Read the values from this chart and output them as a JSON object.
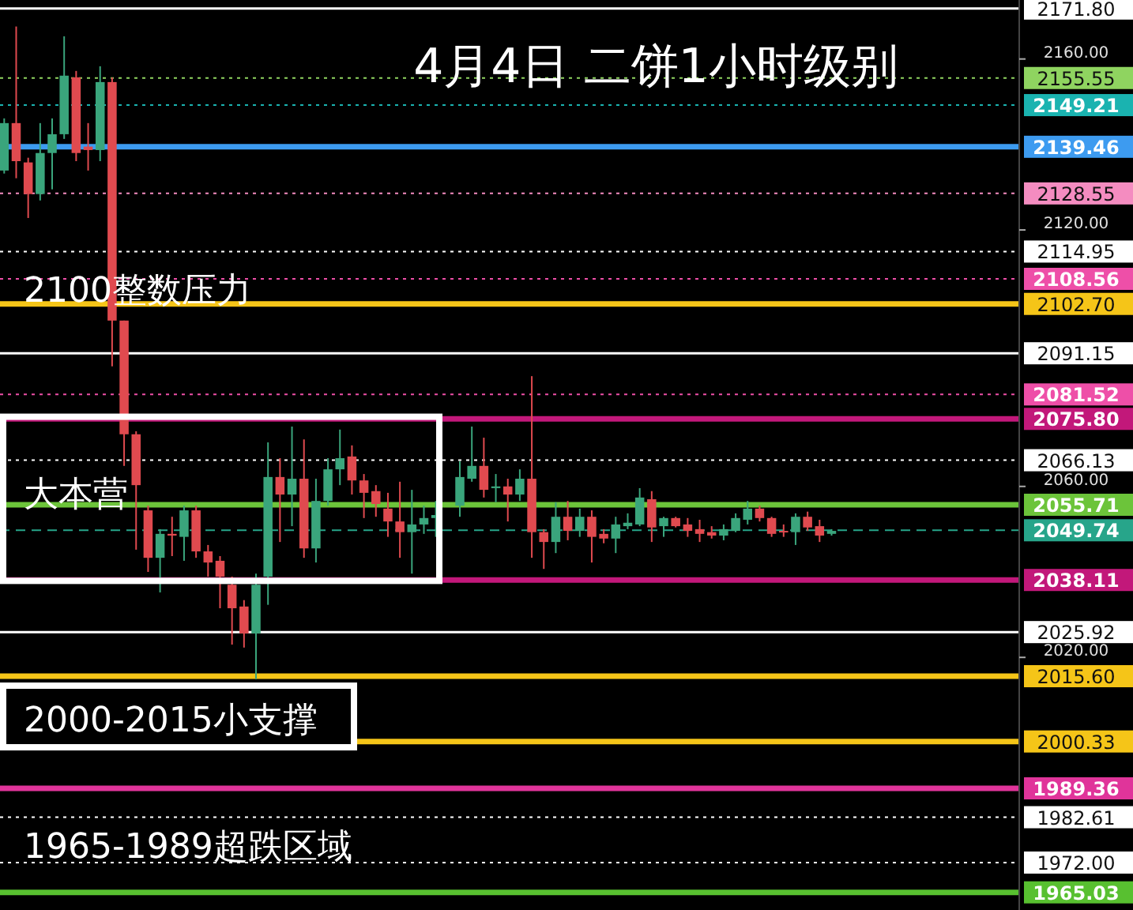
{
  "chart_data": {
    "type": "candlestick",
    "title": "4月4日 二饼1小时级别",
    "categories": [
      null,
      null,
      null,
      null,
      null,
      null,
      null,
      null,
      null,
      null,
      null,
      null,
      null,
      null,
      null,
      null,
      null,
      null,
      null,
      null,
      null,
      null,
      null,
      null,
      null,
      null,
      null,
      null,
      null,
      null,
      null,
      null,
      null,
      null,
      null,
      null,
      null,
      null,
      null,
      null,
      null,
      null,
      null,
      null,
      null,
      null,
      null,
      null,
      null,
      null,
      null,
      null,
      null,
      null,
      null,
      null,
      null,
      null,
      null,
      null,
      null,
      null,
      null,
      null,
      null,
      null,
      null,
      null,
      null,
      null,
      null,
      null,
      null,
      null,
      null,
      null,
      null,
      null,
      null,
      null,
      null,
      null,
      null,
      null,
      null
    ],
    "ohlc": [
      [
        2133.9,
        2146.1,
        2133.2,
        2145.0
      ],
      [
        2145.0,
        2167.6,
        2132.1,
        2136.1
      ],
      [
        2135.8,
        2136.9,
        2122.8,
        2128.4
      ],
      [
        2128.4,
        2145.0,
        2126.9,
        2138.0
      ],
      [
        2138.0,
        2146.1,
        2129.5,
        2142.4
      ],
      [
        2142.4,
        2165.3,
        2141.3,
        2156.1
      ],
      [
        2155.7,
        2157.2,
        2136.1,
        2138.0
      ],
      [
        2139.5,
        2145.0,
        2133.9,
        2138.7
      ],
      [
        2138.7,
        2158.3,
        2136.1,
        2154.6
      ],
      [
        2154.6,
        2155.7,
        2088.1,
        2098.8
      ],
      [
        2098.8,
        2098.8,
        2064.8,
        2072.2
      ],
      [
        2072.2,
        2072.9,
        2045.2,
        2060.3
      ],
      [
        2054.4,
        2055.5,
        2040.0,
        2043.3
      ],
      [
        2043.3,
        2050.0,
        2035.2,
        2048.9
      ],
      [
        2048.9,
        2052.9,
        2043.7,
        2048.5
      ],
      [
        2048.2,
        2055.5,
        2042.6,
        2054.4
      ],
      [
        2054.4,
        2055.5,
        2043.3,
        2044.8
      ],
      [
        2044.8,
        2046.3,
        2038.9,
        2042.2
      ],
      [
        2042.6,
        2043.7,
        2031.5,
        2038.9
      ],
      [
        2037.0,
        2038.9,
        2023.0,
        2031.5
      ],
      [
        2031.9,
        2033.4,
        2022.3,
        2025.6
      ],
      [
        2025.6,
        2039.6,
        2014.9,
        2037.0
      ],
      [
        2038.9,
        2070.3,
        2032.3,
        2062.2
      ],
      [
        2062.2,
        2066.6,
        2047.0,
        2058.1
      ],
      [
        2058.1,
        2074.0,
        2050.7,
        2061.8
      ],
      [
        2061.8,
        2071.0,
        2043.3,
        2045.5
      ],
      [
        2045.5,
        2061.8,
        2042.2,
        2056.6
      ],
      [
        2056.6,
        2066.6,
        2055.5,
        2064.0
      ],
      [
        2064.0,
        2073.3,
        2060.3,
        2066.6
      ],
      [
        2067.0,
        2069.6,
        2058.1,
        2061.4
      ],
      [
        2061.4,
        2062.9,
        2052.6,
        2058.5
      ],
      [
        2058.9,
        2060.3,
        2052.9,
        2055.9
      ],
      [
        2054.8,
        2058.5,
        2048.2,
        2051.8
      ],
      [
        2051.8,
        2061.1,
        2043.3,
        2049.3
      ],
      [
        2049.3,
        2059.2,
        2039.6,
        2051.1
      ],
      [
        2051.1,
        2055.5,
        2048.9,
        2052.6
      ],
      [
        2052.6,
        2056.6,
        2048.2,
        2053.3
      ],
      null,
      [
        2055.5,
        2065.9,
        2052.9,
        2062.2
      ],
      [
        2061.8,
        2074.0,
        2061.1,
        2064.8
      ],
      [
        2064.8,
        2071.4,
        2057.4,
        2059.2
      ],
      [
        2059.6,
        2062.9,
        2056.3,
        2060.0
      ],
      [
        2060.0,
        2061.8,
        2051.8,
        2058.1
      ],
      [
        2058.1,
        2064.0,
        2056.6,
        2061.8
      ],
      [
        2061.8,
        2085.8,
        2043.3,
        2049.3
      ],
      [
        2049.3,
        2050.0,
        2040.7,
        2047.0
      ],
      [
        2047.0,
        2056.3,
        2044.4,
        2052.9
      ],
      [
        2052.9,
        2056.6,
        2047.4,
        2049.6
      ],
      [
        2049.6,
        2054.8,
        2048.2,
        2052.9
      ],
      [
        2052.9,
        2054.4,
        2042.2,
        2048.2
      ],
      [
        2048.9,
        2050.0,
        2046.7,
        2047.8
      ],
      [
        2047.8,
        2052.9,
        2044.4,
        2051.1
      ],
      [
        2050.7,
        2053.7,
        2050.0,
        2051.5
      ],
      [
        2051.1,
        2059.6,
        2050.7,
        2057.4
      ],
      [
        2057.0,
        2058.9,
        2047.0,
        2050.4
      ],
      [
        2050.7,
        2052.9,
        2048.2,
        2052.6
      ],
      [
        2052.6,
        2052.9,
        2050.4,
        2050.7
      ],
      [
        2051.1,
        2052.6,
        2048.2,
        2049.6
      ],
      [
        2050.0,
        2052.2,
        2047.0,
        2048.9
      ],
      [
        2049.3,
        2050.7,
        2047.8,
        2048.5
      ],
      [
        2048.5,
        2051.1,
        2047.4,
        2050.0
      ],
      [
        2049.6,
        2053.7,
        2049.3,
        2052.6
      ],
      [
        2052.2,
        2056.6,
        2051.1,
        2054.8
      ],
      [
        2054.8,
        2055.5,
        2051.8,
        2052.6
      ],
      [
        2052.6,
        2052.9,
        2048.2,
        2048.9
      ],
      [
        2049.6,
        2051.1,
        2048.2,
        2049.3
      ],
      [
        2049.3,
        2053.7,
        2046.3,
        2052.9
      ],
      [
        2052.9,
        2054.1,
        2049.6,
        2050.4
      ],
      [
        2050.7,
        2052.2,
        2047.0,
        2048.5
      ],
      [
        2048.9,
        2050.0,
        2048.5,
        2049.6
      ],
      null,
      null,
      null,
      null,
      null,
      null,
      null,
      null,
      null,
      null,
      null,
      null,
      null,
      null,
      null
    ],
    "colors": [
      "#3aa57c",
      "#e04a4f",
      "#e04a4f",
      "#3aa57c",
      "#3aa57c",
      "#3aa57c",
      "#e04a4f",
      "#e04a4f",
      "#3aa57c",
      "#e04a4f",
      "#e04a4f",
      "#e04a4f",
      "#e04a4f",
      "#3aa57c",
      "#e04a4f",
      "#3aa57c",
      "#e04a4f",
      "#e04a4f",
      "#e04a4f",
      "#e04a4f",
      "#e04a4f",
      "#3aa57c",
      "#3aa57c",
      "#e04a4f",
      "#3aa57c",
      "#e04a4f",
      "#3aa57c",
      "#3aa57c",
      "#3aa57c",
      "#e04a4f",
      "#e04a4f",
      "#e04a4f",
      "#e04a4f",
      "#e04a4f",
      "#3aa57c",
      "#3aa57c",
      "#3aa57c",
      null,
      "#3aa57c",
      "#3aa57c",
      "#e04a4f",
      "#3aa57c",
      "#e04a4f",
      "#3aa57c",
      "#e04a4f",
      "#e04a4f",
      "#3aa57c",
      "#e04a4f",
      "#3aa57c",
      "#e04a4f",
      "#e04a4f",
      "#3aa57c",
      "#3aa57c",
      "#3aa57c",
      "#e04a4f",
      "#3aa57c",
      "#e04a4f",
      "#e04a4f",
      "#e04a4f",
      "#e04a4f",
      "#3aa57c",
      "#3aa57c",
      "#3aa57c",
      "#e04a4f",
      "#e04a4f",
      "#e04a4f",
      "#3aa57c",
      "#e04a4f",
      "#e04a4f",
      "#3aa57c",
      null,
      null,
      null,
      null,
      null,
      null,
      null,
      null,
      null,
      null,
      null,
      null,
      null,
      null,
      null
    ],
    "ylim": [
      1960.9,
      2173.8
    ],
    "yticks": [
      {
        "value": 2160,
        "label": "2160.00"
      },
      {
        "value": 2120,
        "label": "2120.00"
      },
      {
        "value": 2060,
        "label": "2060.00"
      },
      {
        "value": 2020,
        "label": "2020.00"
      }
    ],
    "grid": false,
    "ref_lines": [
      {
        "axis": "y",
        "value": 2171.8,
        "label": "2171.80",
        "color": "#ffffff",
        "line_style": "solid"
      },
      {
        "axis": "y",
        "value": 2155.55,
        "label": "2155.55",
        "color": "#8fd460",
        "line_style": "dotted"
      },
      {
        "axis": "y",
        "value": 2149.21,
        "label": "2149.21",
        "color": "#1ab3b0",
        "line_style": "dotted"
      },
      {
        "axis": "y",
        "value": 2139.46,
        "label": "2139.46",
        "color": "#3d9bf0",
        "line_style": "solid"
      },
      {
        "axis": "y",
        "value": 2128.55,
        "label": "2128.55",
        "color": "#f48cc0",
        "line_style": "dotted"
      },
      {
        "axis": "y",
        "value": 2114.95,
        "label": "2114.95",
        "color": "#ffffff",
        "line_style": "dotted"
      },
      {
        "axis": "y",
        "value": 2108.56,
        "label": "2108.56",
        "color": "#ee4fa8",
        "line_style": "dotted"
      },
      {
        "axis": "y",
        "value": 2102.7,
        "label": "2102.70",
        "color": "#f5c518",
        "line_style": "solid"
      },
      {
        "axis": "y",
        "value": 2091.15,
        "label": "2091.15",
        "color": "#ffffff",
        "line_style": "solid"
      },
      {
        "axis": "y",
        "value": 2081.52,
        "label": "2081.52",
        "color": "#ee4fa8",
        "line_style": "dotted"
      },
      {
        "axis": "y",
        "value": 2075.8,
        "label": "2075.80",
        "color": "#c2187a",
        "line_style": "solid"
      },
      {
        "axis": "y",
        "value": 2066.13,
        "label": "2066.13",
        "color": "#ffffff",
        "line_style": "dotted"
      },
      {
        "axis": "y",
        "value": 2055.71,
        "label": "2055.71",
        "color": "#6cc43a",
        "line_style": "solid"
      },
      {
        "axis": "y",
        "value": 2049.74,
        "label": "2049.74",
        "color": "#27a58a",
        "line_style": "dashed"
      },
      {
        "axis": "y",
        "value": 2038.11,
        "label": "2038.11",
        "color": "#c2187a",
        "line_style": "solid"
      },
      {
        "axis": "y",
        "value": 2025.92,
        "label": "2025.92",
        "color": "#ffffff",
        "line_style": "solid"
      },
      {
        "axis": "y",
        "value": 2015.6,
        "label": "2015.60",
        "color": "#f5c518",
        "line_style": "solid"
      },
      {
        "axis": "y",
        "value": 2000.33,
        "label": "2000.33",
        "color": "#f5c518",
        "line_style": "solid"
      },
      {
        "axis": "y",
        "value": 1989.36,
        "label": "1989.36",
        "color": "#e0349a",
        "line_style": "solid"
      },
      {
        "axis": "y",
        "value": 1982.61,
        "label": "1982.61",
        "color": "#ffffff",
        "line_style": "dotted"
      },
      {
        "axis": "y",
        "value": 1972.0,
        "label": "1972.00",
        "color": "#ffffff",
        "line_style": "dotted"
      },
      {
        "axis": "y",
        "value": 1965.03,
        "label": "1965.03",
        "color": "#58c030",
        "line_style": "solid"
      }
    ],
    "annotations": [
      "2100整数压力",
      "大本营",
      "2000-2015小支撑",
      "1965-1989超跌区域"
    ]
  }
}
